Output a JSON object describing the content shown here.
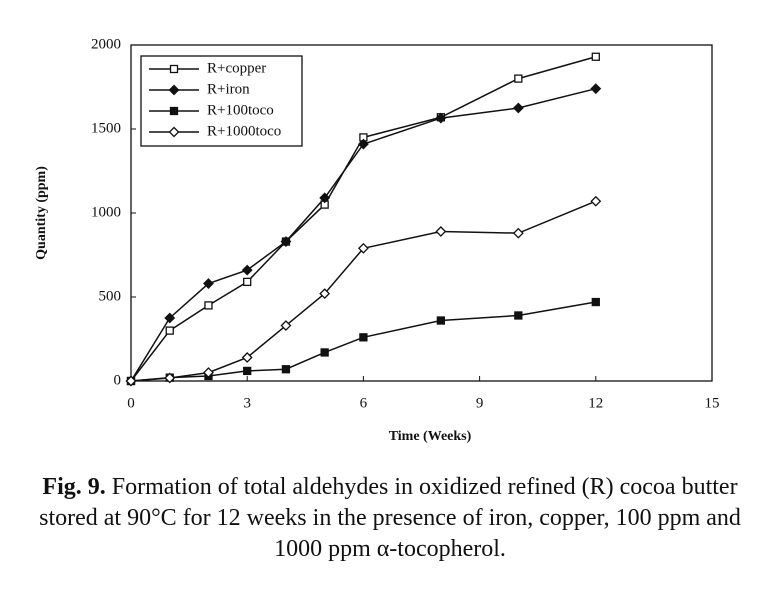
{
  "chart_data": {
    "type": "line",
    "x_label": "Time (Weeks)",
    "y_label": "Quantity (ppm)",
    "x": [
      0,
      1,
      2,
      3,
      4,
      5,
      6,
      8,
      10,
      12
    ],
    "series": [
      {
        "name": "R+copper",
        "color": "#111111",
        "marker": "open-square",
        "values": [
          0,
          300,
          450,
          590,
          830,
          1050,
          1450,
          1570,
          1800,
          1930
        ]
      },
      {
        "name": "R+iron",
        "color": "#111111",
        "marker": "filled-diamond",
        "values": [
          0,
          375,
          580,
          660,
          830,
          1090,
          1410,
          1565,
          1625,
          1740
        ]
      },
      {
        "name": "R+100toco",
        "color": "#111111",
        "marker": "filled-square",
        "values": [
          0,
          20,
          30,
          60,
          70,
          170,
          260,
          360,
          390,
          470
        ]
      },
      {
        "name": "R+1000toco",
        "color": "#111111",
        "marker": "open-diamond",
        "values": [
          0,
          18,
          50,
          140,
          330,
          520,
          790,
          890,
          880,
          1070
        ]
      }
    ],
    "xlim": [
      0,
      15
    ],
    "xticks": [
      0,
      3,
      6,
      9,
      12,
      15
    ],
    "ylim": [
      0,
      2000
    ],
    "yticks": [
      0,
      500,
      1000,
      1500,
      2000
    ],
    "grid": false,
    "legend": "upper left"
  },
  "caption": {
    "label": "Fig. 9.",
    "text": "Formation of total aldehydes in oxidized refined (R) cocoa butter stored at 90°C for 12 weeks in the presence of iron, copper, 100 ppm and 1000 ppm α-tocopherol."
  }
}
